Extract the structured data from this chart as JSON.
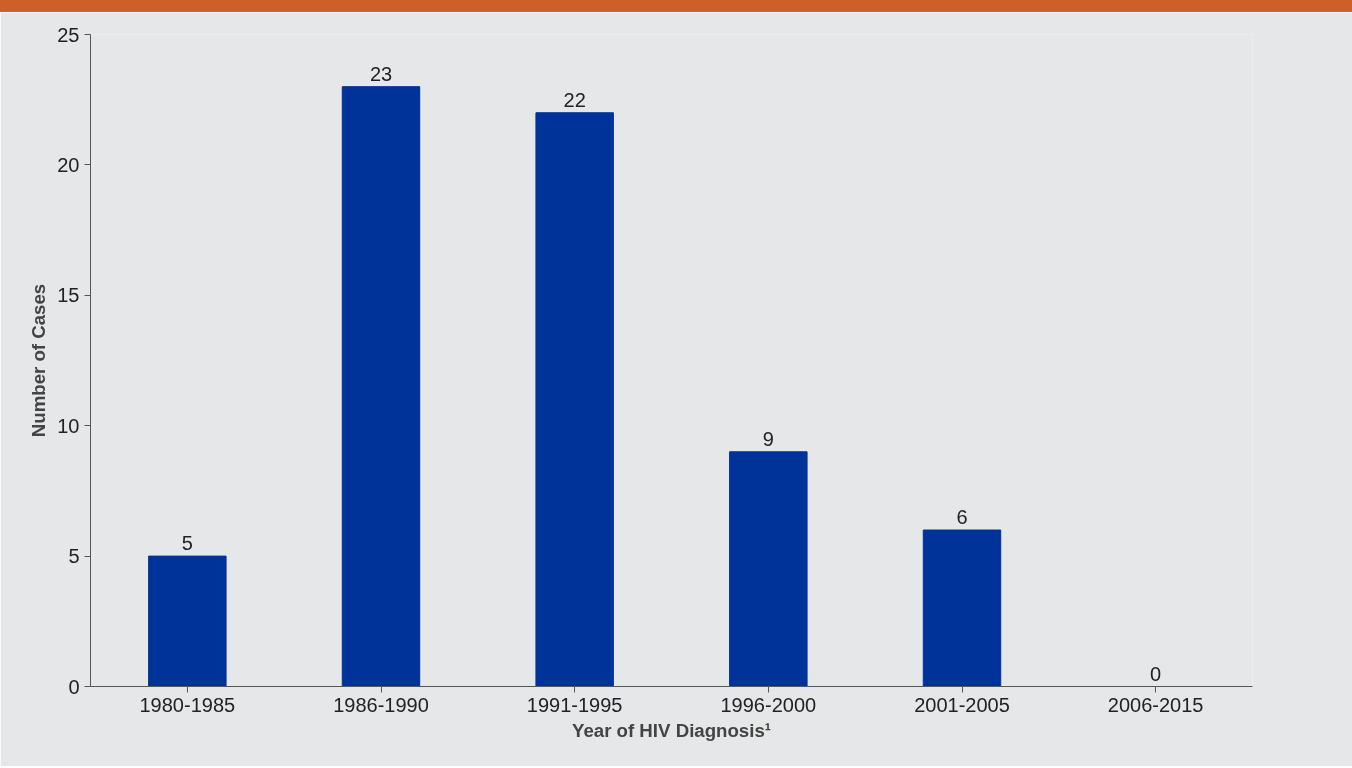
{
  "chart_data": {
    "type": "bar",
    "xlabel": "Year of HIV Diagnosis¹",
    "ylabel": "Number of Cases",
    "categories": [
      "1980-1985",
      "1986-1990",
      "1991-1995",
      "1996-2000",
      "2001-2005",
      "2006-2015"
    ],
    "values": [
      5,
      23,
      22,
      9,
      6,
      0
    ],
    "color": "#003399",
    "ylim": [
      0,
      25
    ],
    "yticks": [
      0,
      5,
      10,
      15,
      20,
      25
    ],
    "data_labels": true
  }
}
